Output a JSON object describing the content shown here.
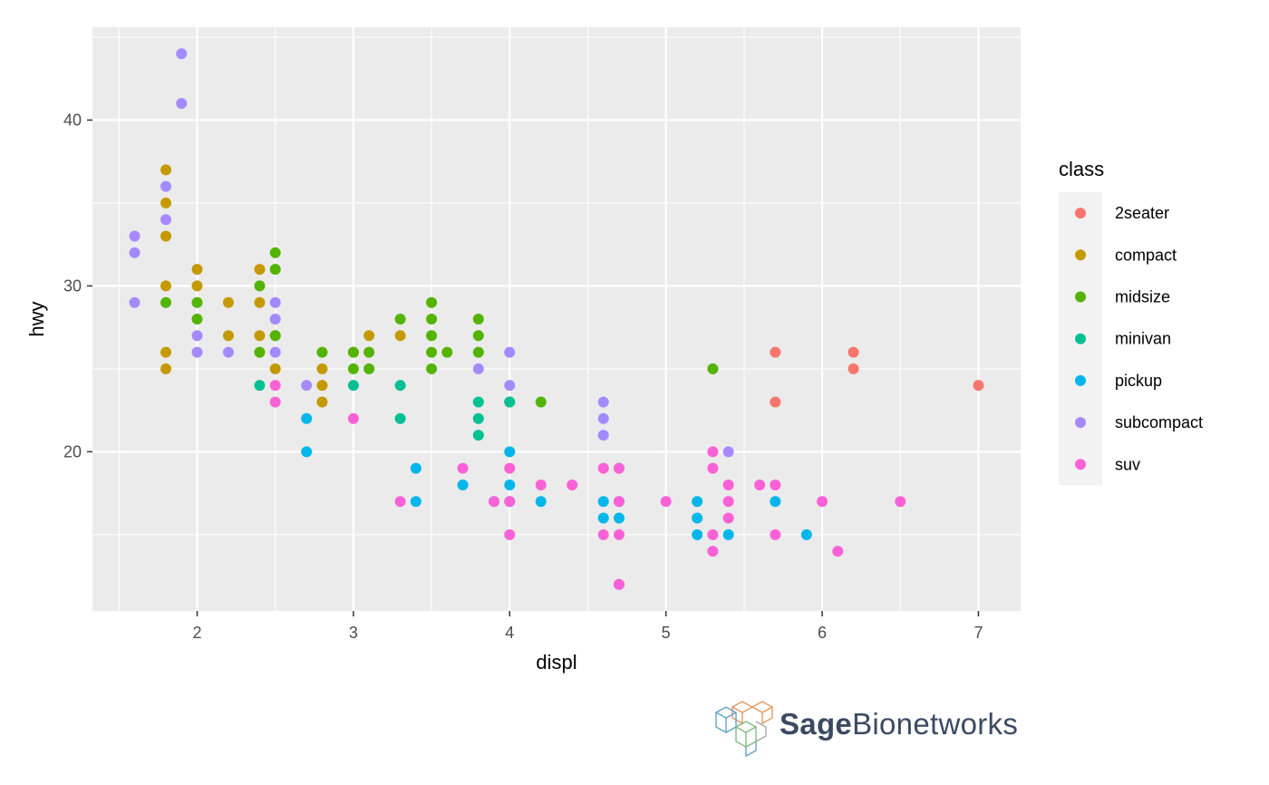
{
  "chart_data": {
    "type": "scatter",
    "title": "",
    "xlabel": "displ",
    "ylabel": "hwy",
    "xlim": [
      1.33,
      7.27
    ],
    "ylim": [
      10.4,
      45.6
    ],
    "x_ticks": [
      2,
      3,
      4,
      5,
      6,
      7
    ],
    "y_ticks": [
      20,
      30,
      40
    ],
    "grid": true,
    "legend": {
      "title": "class",
      "placement": "right",
      "entries": [
        {
          "name": "2seater",
          "color": "#F8766D"
        },
        {
          "name": "compact",
          "color": "#C49A00"
        },
        {
          "name": "midsize",
          "color": "#53B400"
        },
        {
          "name": "minivan",
          "color": "#00C094"
        },
        {
          "name": "pickup",
          "color": "#00B6EB"
        },
        {
          "name": "subcompact",
          "color": "#A58AFF"
        },
        {
          "name": "suv",
          "color": "#FB61D7"
        }
      ]
    },
    "series": [
      {
        "name": "2seater",
        "points": [
          [
            5.7,
            26
          ],
          [
            5.7,
            23
          ],
          [
            6.2,
            26
          ],
          [
            6.2,
            25
          ],
          [
            7.0,
            24
          ]
        ]
      },
      {
        "name": "compact",
        "points": [
          [
            1.8,
            37
          ],
          [
            1.8,
            35
          ],
          [
            1.8,
            33
          ],
          [
            1.8,
            30
          ],
          [
            1.8,
            26
          ],
          [
            1.8,
            25
          ],
          [
            2.0,
            31
          ],
          [
            2.0,
            30
          ],
          [
            2.2,
            29
          ],
          [
            2.2,
            27
          ],
          [
            2.4,
            31
          ],
          [
            2.4,
            29
          ],
          [
            2.4,
            27
          ],
          [
            2.5,
            27
          ],
          [
            2.5,
            25
          ],
          [
            2.8,
            25
          ],
          [
            2.8,
            24
          ],
          [
            2.8,
            23
          ],
          [
            3.0,
            26
          ],
          [
            3.1,
            27
          ],
          [
            3.3,
            27
          ]
        ]
      },
      {
        "name": "midsize",
        "points": [
          [
            1.8,
            29
          ],
          [
            2.0,
            29
          ],
          [
            2.0,
            28
          ],
          [
            2.4,
            30
          ],
          [
            2.4,
            26
          ],
          [
            2.5,
            32
          ],
          [
            2.5,
            31
          ],
          [
            2.5,
            27
          ],
          [
            2.8,
            26
          ],
          [
            3.0,
            26
          ],
          [
            3.0,
            25
          ],
          [
            3.1,
            26
          ],
          [
            3.1,
            25
          ],
          [
            3.3,
            28
          ],
          [
            3.5,
            29
          ],
          [
            3.5,
            28
          ],
          [
            3.5,
            27
          ],
          [
            3.5,
            26
          ],
          [
            3.5,
            25
          ],
          [
            3.6,
            26
          ],
          [
            3.8,
            28
          ],
          [
            3.8,
            27
          ],
          [
            3.8,
            26
          ],
          [
            4.0,
            23
          ],
          [
            4.2,
            23
          ],
          [
            5.3,
            25
          ]
        ]
      },
      {
        "name": "minivan",
        "points": [
          [
            2.4,
            24
          ],
          [
            3.0,
            24
          ],
          [
            3.3,
            24
          ],
          [
            3.3,
            22
          ],
          [
            3.8,
            23
          ],
          [
            3.8,
            22
          ],
          [
            3.8,
            21
          ],
          [
            4.0,
            23
          ]
        ]
      },
      {
        "name": "pickup",
        "points": [
          [
            2.7,
            22
          ],
          [
            2.7,
            20
          ],
          [
            3.4,
            19
          ],
          [
            3.4,
            17
          ],
          [
            3.7,
            18
          ],
          [
            3.9,
            17
          ],
          [
            4.0,
            20
          ],
          [
            4.0,
            18
          ],
          [
            4.0,
            17
          ],
          [
            4.2,
            17
          ],
          [
            4.6,
            17
          ],
          [
            4.6,
            16
          ],
          [
            4.7,
            19
          ],
          [
            4.7,
            17
          ],
          [
            4.7,
            16
          ],
          [
            4.7,
            12
          ],
          [
            5.2,
            17
          ],
          [
            5.2,
            16
          ],
          [
            5.2,
            15
          ],
          [
            5.4,
            15
          ],
          [
            5.7,
            17
          ],
          [
            5.9,
            15
          ]
        ]
      },
      {
        "name": "subcompact",
        "points": [
          [
            1.6,
            33
          ],
          [
            1.6,
            32
          ],
          [
            1.6,
            29
          ],
          [
            1.8,
            36
          ],
          [
            1.8,
            34
          ],
          [
            1.9,
            44
          ],
          [
            1.9,
            41
          ],
          [
            2.0,
            27
          ],
          [
            2.0,
            26
          ],
          [
            2.2,
            26
          ],
          [
            2.5,
            29
          ],
          [
            2.5,
            28
          ],
          [
            2.5,
            26
          ],
          [
            2.7,
            24
          ],
          [
            3.8,
            25
          ],
          [
            4.0,
            26
          ],
          [
            4.0,
            24
          ],
          [
            4.6,
            23
          ],
          [
            4.6,
            22
          ],
          [
            4.6,
            21
          ],
          [
            5.4,
            20
          ]
        ]
      },
      {
        "name": "suv",
        "points": [
          [
            2.5,
            24
          ],
          [
            2.5,
            23
          ],
          [
            3.0,
            22
          ],
          [
            3.3,
            17
          ],
          [
            3.7,
            19
          ],
          [
            3.9,
            17
          ],
          [
            4.0,
            19
          ],
          [
            4.0,
            17
          ],
          [
            4.0,
            15
          ],
          [
            4.2,
            18
          ],
          [
            4.4,
            18
          ],
          [
            4.6,
            19
          ],
          [
            4.6,
            15
          ],
          [
            4.7,
            19
          ],
          [
            4.7,
            17
          ],
          [
            4.7,
            15
          ],
          [
            4.7,
            12
          ],
          [
            5.0,
            17
          ],
          [
            5.3,
            20
          ],
          [
            5.3,
            19
          ],
          [
            5.3,
            15
          ],
          [
            5.3,
            14
          ],
          [
            5.4,
            18
          ],
          [
            5.4,
            17
          ],
          [
            5.4,
            16
          ],
          [
            5.6,
            18
          ],
          [
            5.7,
            18
          ],
          [
            5.7,
            15
          ],
          [
            6.0,
            17
          ],
          [
            6.1,
            14
          ],
          [
            6.5,
            17
          ]
        ]
      }
    ]
  },
  "logo": {
    "text_bold": "Sage",
    "text_light": "Bionetworks"
  }
}
